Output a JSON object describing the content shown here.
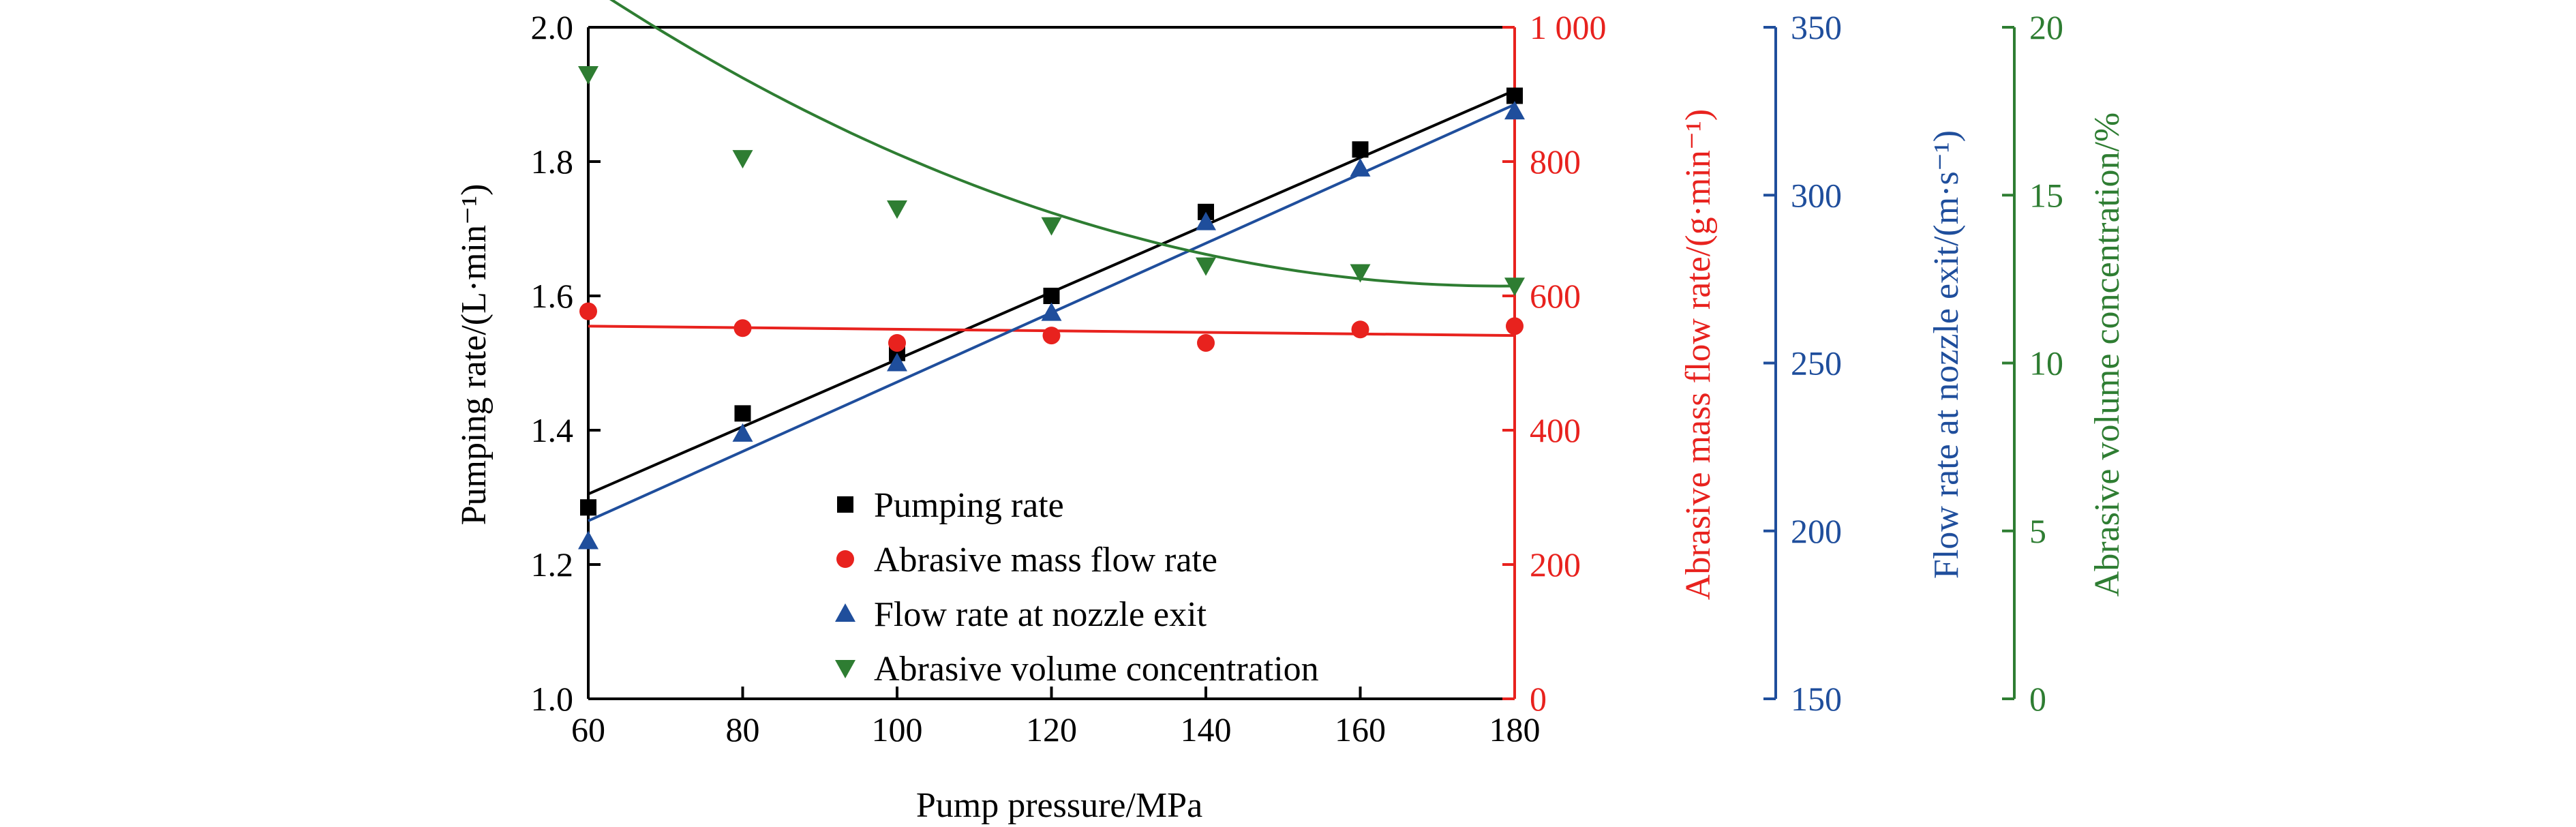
{
  "chart_data": {
    "type": "scatter",
    "x": [
      60,
      80,
      100,
      120,
      140,
      160,
      180
    ],
    "xlabel": "Pump pressure/MPa",
    "xlim": [
      60,
      180
    ],
    "xticks": [
      60,
      80,
      100,
      120,
      140,
      160,
      180
    ],
    "grid": false,
    "legend_position": "bottom-left",
    "axes": [
      {
        "id": "left",
        "label": "Pumping rate/(L·min⁻¹)",
        "lim": [
          1.0,
          2.0
        ],
        "ticks": [
          "1.0",
          "1.2",
          "1.4",
          "1.6",
          "1.8",
          "2.0"
        ],
        "color": "#000000"
      },
      {
        "id": "right1",
        "label": "Abrasive mass flow rate/(g·min⁻¹)",
        "lim": [
          0,
          1000
        ],
        "ticks": [
          "0",
          "200",
          "400",
          "600",
          "800",
          "1 000"
        ],
        "color": "#e8221e"
      },
      {
        "id": "right2",
        "label": "Flow rate at nozzle exit/(m·s⁻¹)",
        "lim": [
          150,
          350
        ],
        "ticks": [
          "150",
          "200",
          "250",
          "300",
          "350"
        ],
        "color": "#1f4e9c"
      },
      {
        "id": "right3",
        "label": "Abrasive volume concentration/%",
        "lim": [
          0,
          20
        ],
        "ticks": [
          "0",
          "5",
          "10",
          "15",
          "20"
        ],
        "color": "#2e7d32"
      }
    ],
    "series": [
      {
        "name": "Pumping rate",
        "axis": "left",
        "marker": "square",
        "color": "#000000",
        "values": [
          1.285,
          1.425,
          1.515,
          1.6,
          1.725,
          1.818,
          1.898
        ],
        "fit": [
          1.305,
          1.906
        ]
      },
      {
        "name": "Abrasive mass flow rate",
        "axis": "right1",
        "marker": "circle",
        "color": "#e8221e",
        "values": [
          577,
          552,
          530,
          541,
          530,
          550,
          555
        ],
        "fit": [
          555,
          541
        ]
      },
      {
        "name": "Flow rate at nozzle exit",
        "axis": "right2",
        "marker": "triangle-up",
        "color": "#1f4e9c",
        "values": [
          197,
          229,
          250,
          265,
          292,
          308,
          325
        ],
        "fit": [
          203,
          327
        ]
      },
      {
        "name": "Abrasive volume concentration",
        "axis": "right3",
        "marker": "triangle-down",
        "color": "#2e7d32",
        "values": [
          18.6,
          16.1,
          14.6,
          14.1,
          12.9,
          12.7,
          12.3
        ],
        "fit_quadratic": [
          0.00064,
          -0.2284,
          32.67
        ]
      }
    ]
  }
}
